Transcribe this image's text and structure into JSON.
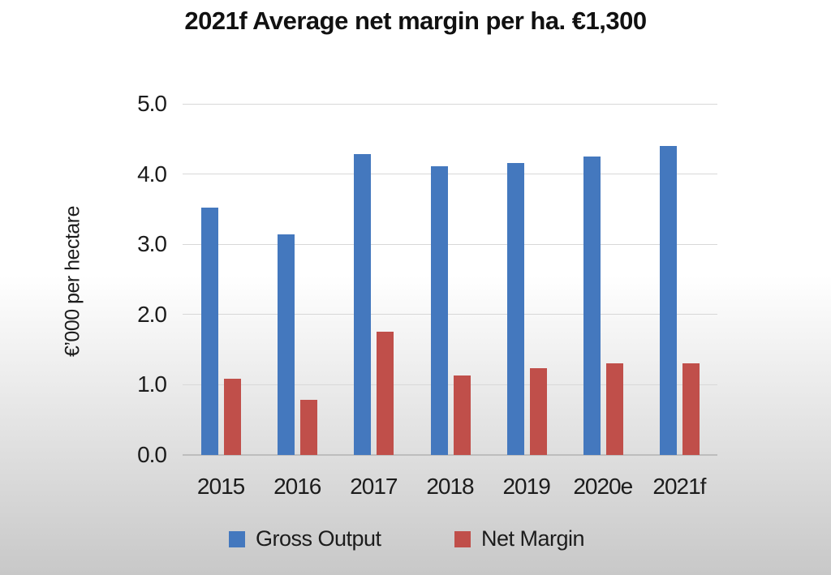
{
  "title": "2021f Average net margin per ha. €1,300",
  "y_axis": {
    "title": "€’000 per hectare",
    "ticks": [
      "5.0",
      "4.0",
      "3.0",
      "2.0",
      "1.0",
      "0.0"
    ]
  },
  "x_axis": {
    "labels": [
      "2015",
      "2016",
      "2017",
      "2018",
      "2019",
      "2020e",
      "2021f"
    ]
  },
  "colors": {
    "background_top": "#ffffff",
    "background_bottom": "#c8c8c8",
    "gridline": "#d8d8d8",
    "axis_line": "#bdbdbd",
    "gross_output": "#4478be",
    "net_margin": "#c04f4a"
  },
  "chart_data": {
    "type": "bar",
    "title": "2021f Average net margin per ha. €1,300",
    "xlabel": "",
    "ylabel": "€’000 per hectare",
    "ylim": [
      0,
      5
    ],
    "ytick_step": 1.0,
    "grid": true,
    "legend_position": "bottom",
    "categories": [
      "2015",
      "2016",
      "2017",
      "2018",
      "2019",
      "2020e",
      "2021f"
    ],
    "series": [
      {
        "name": "Gross Output",
        "color": "#4478be",
        "values": [
          3.52,
          3.14,
          4.28,
          4.11,
          4.16,
          4.25,
          4.4
        ]
      },
      {
        "name": "Net Margin",
        "color": "#c04f4a",
        "values": [
          1.09,
          0.79,
          1.75,
          1.13,
          1.23,
          1.3,
          1.3
        ]
      }
    ]
  }
}
